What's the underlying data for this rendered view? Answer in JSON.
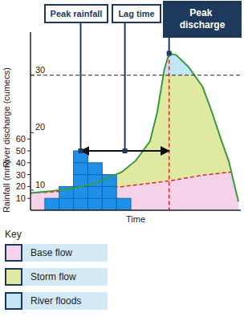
{
  "chart_data": {
    "type": "combo",
    "xlabel": "Time",
    "ylabel": "River discharge (cumecs)",
    "y2label": "Rainfall (mm)",
    "xlim": [
      0,
      44
    ],
    "ylim": [
      6.5,
      37.5
    ],
    "yticks": [
      10,
      20,
      30
    ],
    "y2lim": [
      0,
      150
    ],
    "y2ticks": [
      10,
      20,
      30,
      40,
      50,
      60
    ],
    "tick_labels": "y",
    "flood_level": 30,
    "series": [
      {
        "type": "bar",
        "axis": "y2",
        "color": "#1e90e8",
        "x": [
          4.5,
          7.5,
          10.5,
          13.5,
          16.5,
          19.5
        ],
        "values": [
          10,
          20,
          50,
          40,
          30,
          10
        ]
      },
      {
        "type": "area",
        "color": "#3a9a3e",
        "line_style": "solid",
        "x": [
          0,
          4,
          9,
          14,
          19,
          22,
          25,
          26.5,
          28,
          29,
          30.5,
          33,
          36,
          38,
          40,
          41.5,
          42.5,
          43.5
        ],
        "values": [
          9.5,
          9.8,
          10.3,
          11.4,
          13.1,
          15.1,
          18.5,
          23.5,
          31,
          33.8,
          33.5,
          31.5,
          28,
          23.5,
          18.5,
          15,
          11.5,
          8
        ]
      },
      {
        "type": "area",
        "color": "#e0262b",
        "line_style": "dashed",
        "x": [
          0,
          9,
          19,
          29,
          36,
          43.5
        ],
        "values": [
          9.5,
          9.9,
          10.6,
          11.6,
          12.6,
          13.3
        ]
      }
    ],
    "annotations": {
      "peak_rainfall": "Peak rainfall",
      "lag_time": "Lag time",
      "peak_discharge": "Peak discharge"
    },
    "key": {
      "title": "Key",
      "items": [
        {
          "label": "Base flow",
          "color": "#f4d3ea"
        },
        {
          "label": "Storm flow",
          "color": "#e0e9a2"
        },
        {
          "label": "River floods",
          "color": "#c3e6f5"
        }
      ]
    }
  }
}
